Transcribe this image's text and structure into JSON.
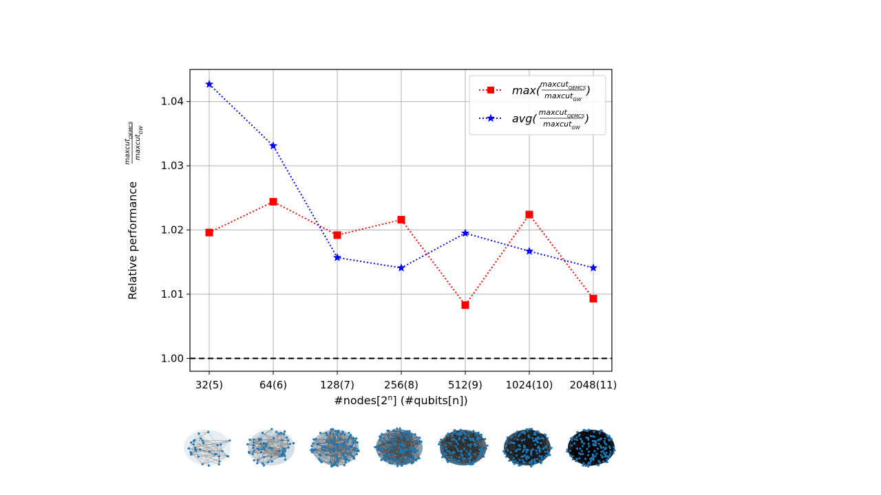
{
  "chart_data": {
    "type": "line",
    "title": "",
    "categories": [
      "32(5)",
      "64(6)",
      "128(7)",
      "256(8)",
      "512(9)",
      "1024(10)",
      "2048(11)"
    ],
    "xlabel": {
      "prefix": "#nodes[2",
      "sup": "n",
      "suffix": "] (#qubits[n])"
    },
    "ylabel": {
      "text": "Relative performance",
      "num": "maxcut",
      "num_sub": "QEMCS",
      "den": "maxcut",
      "den_sub": "GW"
    },
    "ylim": [
      0.998,
      1.045
    ],
    "yticks": [
      "1.00",
      "1.01",
      "1.02",
      "1.03",
      "1.04"
    ],
    "grid": true,
    "legend_position": "top-right",
    "baseline": {
      "value": 1.0,
      "style": "dashed",
      "color": "#000000"
    },
    "series": [
      {
        "name_prefix": "max(",
        "frac_num": "maxcut",
        "frac_num_sub": "QEMCS",
        "frac_den": "maxcut",
        "frac_den_sub": "GW",
        "name_suffix": ")",
        "color": "#ff0000",
        "marker": "square",
        "linestyle": "dotted",
        "values": [
          1.0196,
          1.0244,
          1.0192,
          1.0216,
          1.0083,
          1.0224,
          1.0093
        ]
      },
      {
        "name_prefix": "avg(",
        "frac_num": "maxcut",
        "frac_num_sub": "QEMCS",
        "frac_den": "maxcut",
        "frac_den_sub": "GW",
        "name_suffix": ")",
        "color": "#0000ff",
        "marker": "star",
        "linestyle": "dotted",
        "values": [
          1.0427,
          1.0331,
          1.0157,
          1.0141,
          1.0195,
          1.0167,
          1.0141
        ]
      }
    ]
  },
  "graph_thumbnails": [
    {
      "nodes": 32,
      "density": 0.12
    },
    {
      "nodes": 64,
      "density": 0.22
    },
    {
      "nodes": 128,
      "density": 0.38
    },
    {
      "nodes": 256,
      "density": 0.55
    },
    {
      "nodes": 512,
      "density": 0.72
    },
    {
      "nodes": 1024,
      "density": 0.86
    },
    {
      "nodes": 2048,
      "density": 1.0
    }
  ]
}
